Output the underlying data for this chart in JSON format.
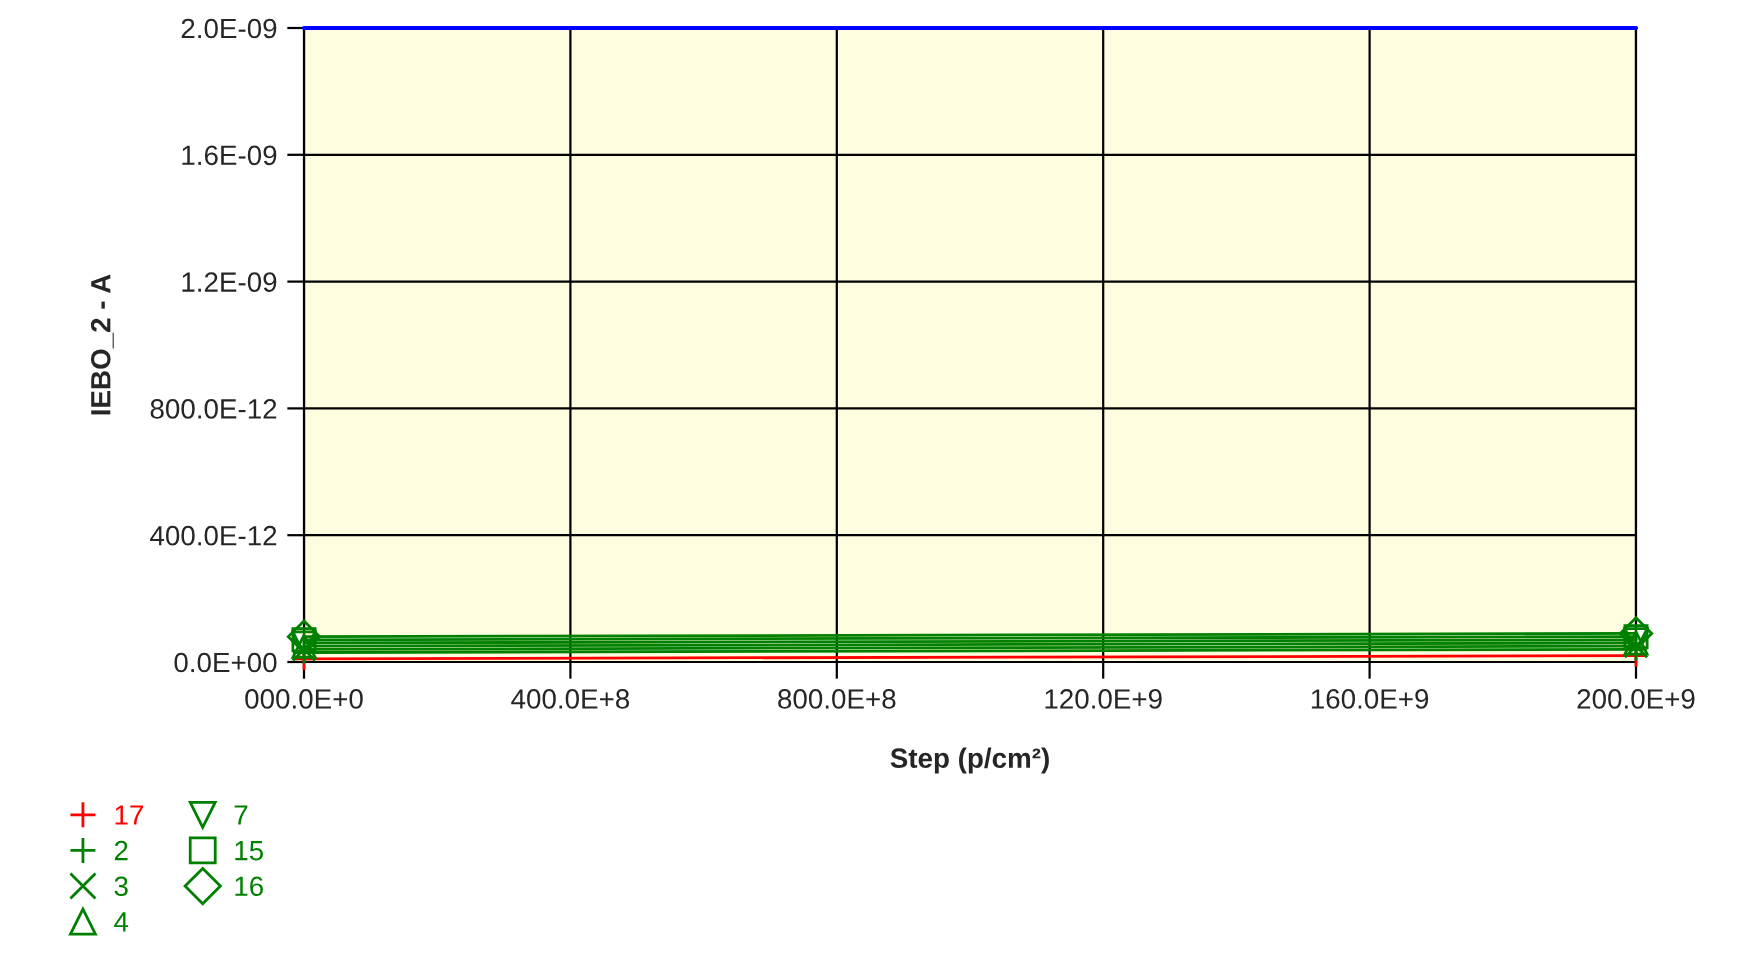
{
  "chart_data": {
    "type": "line",
    "xlabel": "Step (p/cm²)",
    "ylabel": "IEBO_2 - A",
    "x": [
      0,
      200000000000
    ],
    "series": [
      {
        "name": "17",
        "color": "#ff0000",
        "marker": "plus",
        "values": [
          1e-11,
          2e-11
        ]
      },
      {
        "name": "2",
        "color": "#008000",
        "marker": "plus",
        "values": [
          3e-11,
          4e-11
        ]
      },
      {
        "name": "3",
        "color": "#008000",
        "marker": "cross",
        "values": [
          4e-11,
          5e-11
        ]
      },
      {
        "name": "4",
        "color": "#008000",
        "marker": "triangle",
        "values": [
          5e-11,
          6e-11
        ]
      },
      {
        "name": "7",
        "color": "#008000",
        "marker": "triangle_down",
        "values": [
          6e-11,
          7e-11
        ]
      },
      {
        "name": "15",
        "color": "#008000",
        "marker": "square",
        "values": [
          7e-11,
          8e-11
        ]
      },
      {
        "name": "16",
        "color": "#008000",
        "marker": "diamond",
        "values": [
          8e-11,
          9e-11
        ]
      }
    ],
    "xlim": [
      0,
      200000000000
    ],
    "xticks": [
      {
        "value": 0,
        "label": "000.0E+0"
      },
      {
        "value": 40000000000,
        "label": "400.0E+8"
      },
      {
        "value": 80000000000,
        "label": "800.0E+8"
      },
      {
        "value": 120000000000,
        "label": "120.0E+9"
      },
      {
        "value": 160000000000,
        "label": "160.0E+9"
      },
      {
        "value": 200000000000,
        "label": "200.0E+9"
      }
    ],
    "ylim": [
      0,
      2e-09
    ],
    "yticks": [
      {
        "value": 0,
        "label": "0.0E+00"
      },
      {
        "value": 4e-10,
        "label": "400.0E-12"
      },
      {
        "value": 8e-10,
        "label": "800.0E-12"
      },
      {
        "value": 1.2e-09,
        "label": "1.2E-09"
      },
      {
        "value": 1.6e-09,
        "label": "1.6E-09"
      },
      {
        "value": 2e-09,
        "label": "2.0E-09"
      }
    ],
    "ref_lines": [
      {
        "axis": "y",
        "value": 2e-09,
        "color": "#0000ff"
      }
    ],
    "grid": true,
    "legend": "bottom left",
    "line_style": "solid"
  }
}
